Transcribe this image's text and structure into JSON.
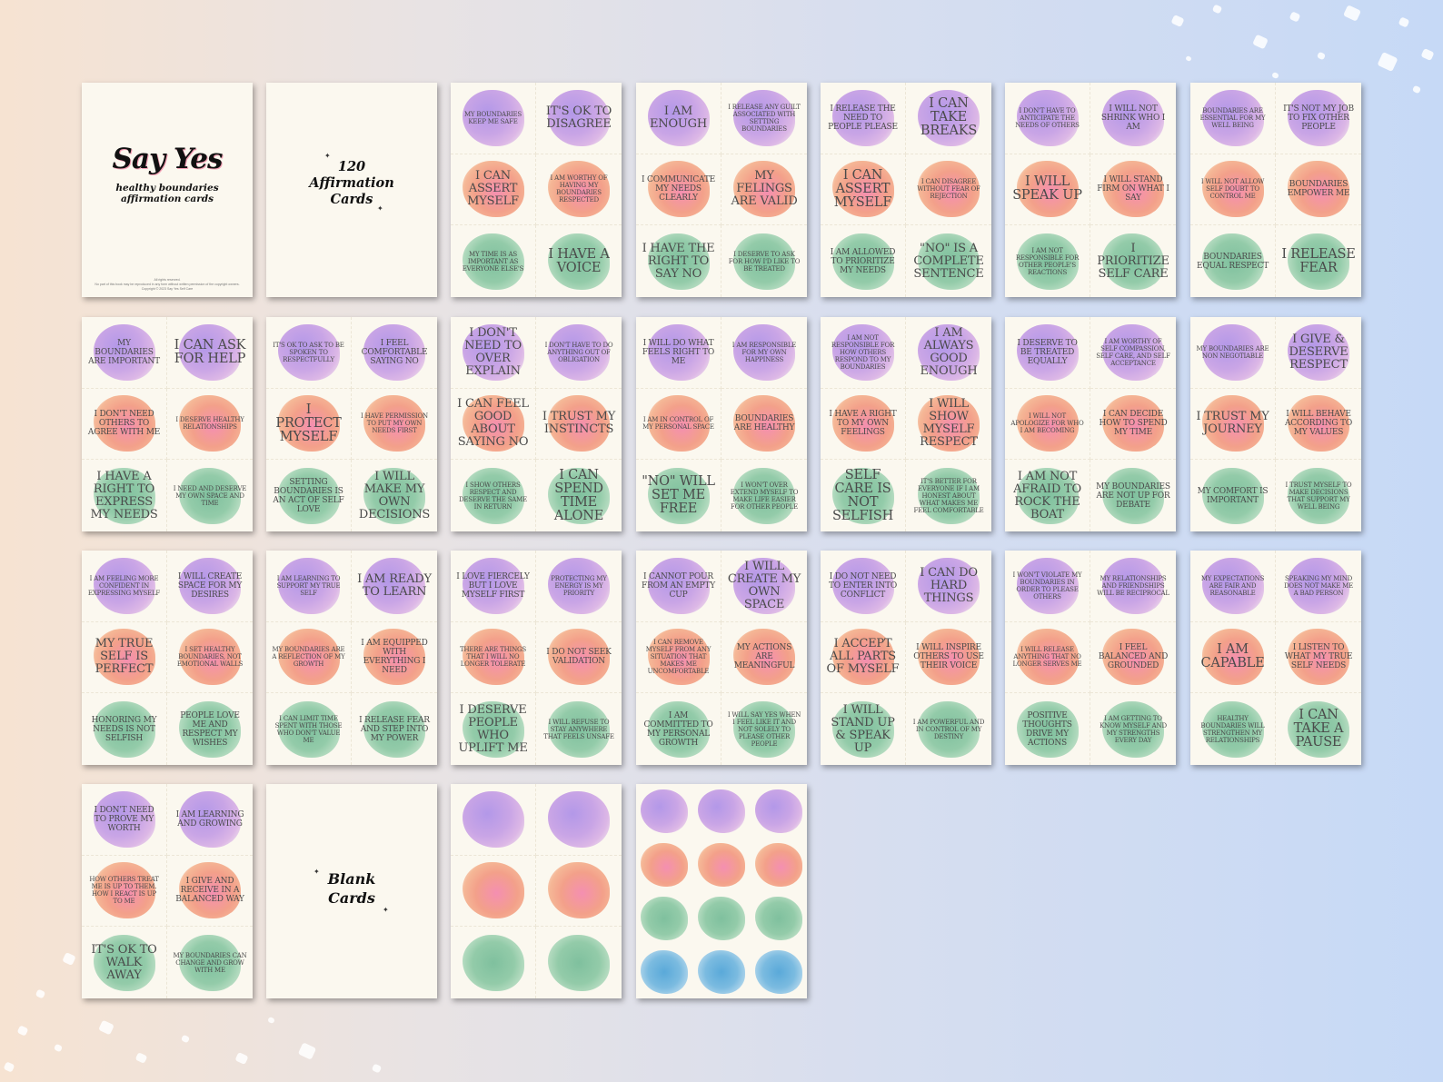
{
  "cover": {
    "title": "Say Yes",
    "subtitle_line1": "healthy boundaries",
    "subtitle_line2": "affirmation cards",
    "fine_print": [
      "All rights reserved.",
      "No part of this book may be reproduced in any form without written permission of the copyright owners.",
      "Copyright © 2023 Say Yes Self Care"
    ]
  },
  "title_card": {
    "line1": "120",
    "line2": "Affirmation",
    "line3": "Cards"
  },
  "blank_card": {
    "line1": "Blank",
    "line2": "Cards"
  },
  "sheets": [
    {
      "cards": [
        {
          "text": "My boundaries keep me safe",
          "size": "s"
        },
        {
          "text": "It's ok to disagree",
          "size": "l"
        },
        {
          "text": "I can assert myself",
          "size": "l"
        },
        {
          "text": "I am worthy of having my boundaries respected",
          "size": "s"
        },
        {
          "text": "My time is as important as everyone else's",
          "size": "s"
        },
        {
          "text": "I have a voice",
          "size": "xl"
        }
      ]
    },
    {
      "cards": [
        {
          "text": "I am enough",
          "size": "l"
        },
        {
          "text": "I release any guilt associated with setting boundaries",
          "size": "s"
        },
        {
          "text": "I communicate my needs clearly",
          "size": "m"
        },
        {
          "text": "My felings are valid",
          "size": "l"
        },
        {
          "text": "I have the right to say no",
          "size": "l"
        },
        {
          "text": "I deserve to ask for how I'd like to be treated",
          "size": "s"
        }
      ]
    },
    {
      "cards": [
        {
          "text": "I release the need to people please",
          "size": "m"
        },
        {
          "text": "I can take breaks",
          "size": "xl"
        },
        {
          "text": "I can assert myself",
          "size": "xl"
        },
        {
          "text": "I can disagree without fear of rejection",
          "size": "s"
        },
        {
          "text": "I am allowed to prioritize my needs",
          "size": "m"
        },
        {
          "text": "\"No\" is a complete sentence",
          "size": "l"
        }
      ]
    },
    {
      "cards": [
        {
          "text": "I don't have to anticipate the needs of others",
          "size": "s"
        },
        {
          "text": "I will not shrink who I am",
          "size": "m"
        },
        {
          "text": "I will speak up",
          "size": "xl"
        },
        {
          "text": "I will stand firm on what I say",
          "size": "m"
        },
        {
          "text": "I am not responsible for other people's reactions",
          "size": "s"
        },
        {
          "text": "I prioritize self care",
          "size": "l"
        }
      ]
    },
    {
      "cards": [
        {
          "text": "Boundaries are essential for my well being",
          "size": "s"
        },
        {
          "text": "It's not my job to fix other people",
          "size": "m"
        },
        {
          "text": "I will not allow self doubt to control me",
          "size": "s"
        },
        {
          "text": "Boundaries empower me",
          "size": "m"
        },
        {
          "text": "Boundaries equal respect",
          "size": "m"
        },
        {
          "text": "I release fear",
          "size": "xl"
        }
      ]
    },
    {
      "cards": [
        {
          "text": "My boundaries are important",
          "size": "m"
        },
        {
          "text": "I can ask for help",
          "size": "xl"
        },
        {
          "text": "I don't need others to agree with me",
          "size": "m"
        },
        {
          "text": "I deserve healthy relationships",
          "size": "s"
        },
        {
          "text": "I have a right to express my needs",
          "size": "l"
        },
        {
          "text": "I need and deserve my own space and time",
          "size": "s"
        }
      ]
    },
    {
      "cards": [
        {
          "text": "It's ok to ask to be spoken to respectfully",
          "size": "s"
        },
        {
          "text": "I feel comfortable saying no",
          "size": "m"
        },
        {
          "text": "I protect myself",
          "size": "xl"
        },
        {
          "text": "I have permission to put my own needs first",
          "size": "s"
        },
        {
          "text": "Setting boundaries is an act of self love",
          "size": "m"
        },
        {
          "text": "I will make my own decisions",
          "size": "l"
        }
      ]
    },
    {
      "cards": [
        {
          "text": "I don't need to over explain",
          "size": "l"
        },
        {
          "text": "I don't have to do anything out of obligation",
          "size": "s"
        },
        {
          "text": "I can feel good about saying no",
          "size": "l"
        },
        {
          "text": "I trust my instincts",
          "size": "l"
        },
        {
          "text": "I show others respect and deserve the same in return",
          "size": "s"
        },
        {
          "text": "I can spend time alone",
          "size": "xl"
        }
      ]
    },
    {
      "cards": [
        {
          "text": "I will do what feels right to me",
          "size": "m"
        },
        {
          "text": "I am responsible for my own happiness",
          "size": "s"
        },
        {
          "text": "I am in control of my personal space",
          "size": "s"
        },
        {
          "text": "Boundaries are healthy",
          "size": "m"
        },
        {
          "text": "\"No\" will set me free",
          "size": "xl"
        },
        {
          "text": "I won't over extend myself to make life easier for other people",
          "size": "s"
        }
      ]
    },
    {
      "cards": [
        {
          "text": "I am not responsible for how others respond to my boundaries",
          "size": "s"
        },
        {
          "text": "I am always good enough",
          "size": "l"
        },
        {
          "text": "I have a right to my own feelings",
          "size": "m"
        },
        {
          "text": "I will show myself respect",
          "size": "l"
        },
        {
          "text": "Self care is not selfish",
          "size": "xl"
        },
        {
          "text": "It's better for everyone if I am honest about what makes me feel comfortable",
          "size": "s"
        }
      ]
    },
    {
      "cards": [
        {
          "text": "I deserve to be treated equally",
          "size": "m"
        },
        {
          "text": "I am worthy of self compassion, self care, and self acceptance",
          "size": "s"
        },
        {
          "text": "I will not apologize for who I am becoming",
          "size": "s"
        },
        {
          "text": "I can decide how to spend my time",
          "size": "m"
        },
        {
          "text": "I am not afraid to rock the boat",
          "size": "l"
        },
        {
          "text": "My boundaries are not up for debate",
          "size": "m"
        }
      ]
    },
    {
      "cards": [
        {
          "text": "My boundaries are non negotiable",
          "size": "s"
        },
        {
          "text": "I give & deserve respect",
          "size": "l"
        },
        {
          "text": "I trust my journey",
          "size": "l"
        },
        {
          "text": "I will behave according to my values",
          "size": "m"
        },
        {
          "text": "My comfort is important",
          "size": "m"
        },
        {
          "text": "I trust myself to make decisions that support my well being",
          "size": "s"
        }
      ]
    },
    {
      "cards": [
        {
          "text": "I am feeling more confident in expressing myself",
          "size": "s"
        },
        {
          "text": "I will create space for my desires",
          "size": "m"
        },
        {
          "text": "My true self is perfect",
          "size": "l"
        },
        {
          "text": "I set healthy boundaries, not emotional walls",
          "size": "s"
        },
        {
          "text": "Honoring my needs is not selfish",
          "size": "m"
        },
        {
          "text": "People love me and respect my wishes",
          "size": "m"
        }
      ]
    },
    {
      "cards": [
        {
          "text": "I am learning to support my true self",
          "size": "s"
        },
        {
          "text": "I am ready to learn",
          "size": "l"
        },
        {
          "text": "My boundaries are a reflection of my growth",
          "size": "s"
        },
        {
          "text": "I am equipped with everything I need",
          "size": "m"
        },
        {
          "text": "I can limit time spent with those who don't value me",
          "size": "s"
        },
        {
          "text": "I release fear and step into my power",
          "size": "m"
        }
      ]
    },
    {
      "cards": [
        {
          "text": "I love fiercely but I love myself first",
          "size": "m"
        },
        {
          "text": "Protecting my energy is my priority",
          "size": "s"
        },
        {
          "text": "There are things that I will no longer tolerate",
          "size": "s"
        },
        {
          "text": "I do not seek validation",
          "size": "m"
        },
        {
          "text": "I deserve people who uplift me",
          "size": "l"
        },
        {
          "text": "I will refuse to stay anywhere that feels unsafe",
          "size": "s"
        }
      ]
    },
    {
      "cards": [
        {
          "text": "I cannot pour from an empty cup",
          "size": "m"
        },
        {
          "text": "I will create my own space",
          "size": "l"
        },
        {
          "text": "I can remove myself from any situation that makes me uncomfortable",
          "size": "s"
        },
        {
          "text": "My actions are meaningful",
          "size": "m"
        },
        {
          "text": "I am committed to my personal growth",
          "size": "m"
        },
        {
          "text": "I will say yes when I feel like it and not solely to please other people",
          "size": "s"
        }
      ]
    },
    {
      "cards": [
        {
          "text": "I do not need to enter into conflict",
          "size": "m"
        },
        {
          "text": "I can do hard things",
          "size": "l"
        },
        {
          "text": "I accept all parts of myself",
          "size": "l"
        },
        {
          "text": "I will inspire others to use their voice",
          "size": "m"
        },
        {
          "text": "I will stand up & speak up",
          "size": "l"
        },
        {
          "text": "I am powerful and in control of my destiny",
          "size": "s"
        }
      ]
    },
    {
      "cards": [
        {
          "text": "I won't violate my boundaries in order to please others",
          "size": "s"
        },
        {
          "text": "My relationships and friendships will be reciprocal",
          "size": "s"
        },
        {
          "text": "I will release anything that no longer serves me",
          "size": "s"
        },
        {
          "text": "I feel balanced and grounded",
          "size": "m"
        },
        {
          "text": "Positive thoughts drive my actions",
          "size": "m"
        },
        {
          "text": "I am getting to know myself and my strengths every day",
          "size": "s"
        }
      ]
    },
    {
      "cards": [
        {
          "text": "My expectations are fair and reasonable",
          "size": "s"
        },
        {
          "text": "Speaking my mind does not make me a bad person",
          "size": "s"
        },
        {
          "text": "I am capable",
          "size": "xl"
        },
        {
          "text": "I listen to what my true self needs",
          "size": "m"
        },
        {
          "text": "Healthy boundaries will strengthen my relationships",
          "size": "s"
        },
        {
          "text": "I can take a pause",
          "size": "xl"
        }
      ]
    },
    {
      "cards": [
        {
          "text": "I don't need to prove my worth",
          "size": "m"
        },
        {
          "text": "I am learning and growing",
          "size": "m"
        },
        {
          "text": "How others treat me is up to them. How I react is up to me",
          "size": "s"
        },
        {
          "text": "I give and receive in a balanced way",
          "size": "m"
        },
        {
          "text": "It's ok to walk away",
          "size": "l"
        },
        {
          "text": "My boundaries can change and grow with me",
          "size": "s"
        }
      ]
    }
  ],
  "colors": {
    "purple": "#b398e8",
    "coral": "#f3a08a",
    "green": "#7fc09e",
    "blue": "#5aa9d9",
    "paper": "#fbf8ef"
  }
}
